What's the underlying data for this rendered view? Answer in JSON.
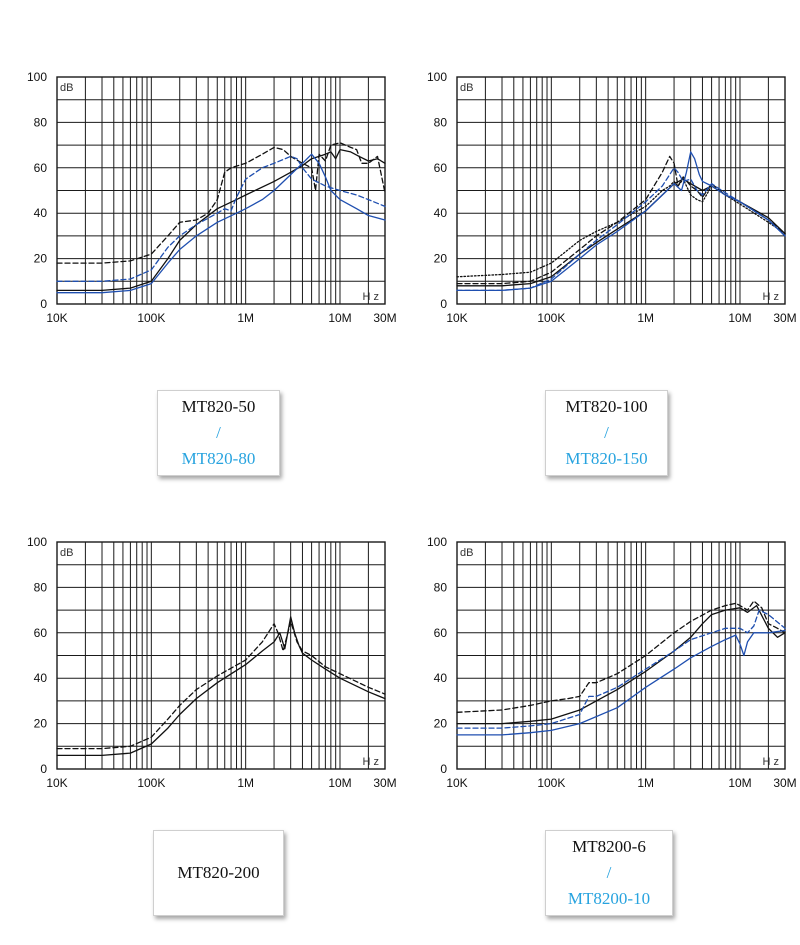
{
  "chart_data": [
    {
      "type": "line",
      "xscale": "log",
      "xlim": [
        10000,
        30000000
      ],
      "ylim": [
        0,
        100
      ],
      "x_ticks": [
        "10K",
        "100K",
        "1M",
        "10M",
        "30M"
      ],
      "y_ticks": [
        "0",
        "20",
        "40",
        "60",
        "80",
        "100"
      ],
      "ylabel": "dB",
      "xunit": "Hz",
      "legend": {
        "black": "MT820-50",
        "slash": "/",
        "blue": "MT820-80"
      },
      "series": [
        {
          "color": "#111111",
          "dash": "solid",
          "x": [
            10000,
            30000,
            60000,
            100000,
            150000,
            200000,
            300000,
            500000,
            800000,
            1000000,
            2000000,
            3000000,
            4000000,
            5000000,
            6000000,
            7000000,
            8000000,
            9000000,
            10000000,
            13000000,
            16000000,
            20000000,
            25000000,
            30000000
          ],
          "y": [
            6,
            6,
            7,
            10,
            20,
            28,
            35,
            42,
            46,
            48,
            54,
            58,
            61,
            64,
            65,
            66,
            67,
            64,
            68,
            67,
            65,
            63,
            64,
            62
          ]
        },
        {
          "color": "#111111",
          "dash": "dashed",
          "x": [
            10000,
            30000,
            60000,
            100000,
            150000,
            200000,
            300000,
            400000,
            500000,
            600000,
            700000,
            1000000,
            1500000,
            2000000,
            2500000,
            3000000,
            4000000,
            5000000,
            5500000,
            6000000,
            7000000,
            8000000,
            10000000,
            13000000,
            15000000,
            17000000,
            20000000,
            25000000,
            30000000
          ],
          "y": [
            18,
            18,
            19,
            22,
            30,
            36,
            37,
            40,
            46,
            58,
            60,
            62,
            66,
            69,
            68,
            65,
            62,
            60,
            50,
            66,
            63,
            70,
            71,
            69,
            68,
            62,
            62,
            65,
            49
          ]
        },
        {
          "color": "#1f4fb0",
          "dash": "dashed",
          "x": [
            10000,
            30000,
            60000,
            100000,
            150000,
            200000,
            300000,
            500000,
            600000,
            700000,
            800000,
            1000000,
            1500000,
            2000000,
            3000000,
            3500000,
            4000000,
            5000000,
            7000000,
            10000000,
            15000000,
            20000000,
            30000000
          ],
          "y": [
            10,
            10,
            11,
            15,
            25,
            30,
            35,
            40,
            42,
            41,
            47,
            55,
            60,
            62,
            65,
            64,
            60,
            55,
            52,
            50,
            48,
            46,
            43
          ]
        },
        {
          "color": "#1f4fb0",
          "dash": "solid",
          "x": [
            10000,
            30000,
            60000,
            100000,
            150000,
            200000,
            300000,
            500000,
            800000,
            1000000,
            1500000,
            2000000,
            3000000,
            4000000,
            5000000,
            6000000,
            7000000,
            8000000,
            10000000,
            15000000,
            20000000,
            30000000
          ],
          "y": [
            5,
            5,
            6,
            9,
            18,
            24,
            30,
            36,
            40,
            42,
            46,
            50,
            57,
            62,
            66,
            62,
            56,
            50,
            46,
            42,
            39,
            37
          ]
        }
      ]
    },
    {
      "type": "line",
      "xscale": "log",
      "xlim": [
        10000,
        30000000
      ],
      "ylim": [
        0,
        100
      ],
      "x_ticks": [
        "10K",
        "100K",
        "1M",
        "10M",
        "30M"
      ],
      "y_ticks": [
        "0",
        "20",
        "40",
        "60",
        "80",
        "100"
      ],
      "ylabel": "dB",
      "xunit": "Hz",
      "legend": {
        "black": "MT820-100",
        "slash": "/",
        "blue": "MT820-150"
      },
      "series": [
        {
          "color": "#111111",
          "dash": "dotted",
          "x": [
            10000,
            30000,
            60000,
            100000,
            200000,
            300000,
            500000,
            1000000,
            1500000,
            1800000,
            2000000,
            2200000,
            2500000,
            3000000,
            3500000,
            4000000,
            5000000,
            7000000,
            10000000,
            20000000,
            30000000
          ],
          "y": [
            12,
            13,
            14,
            18,
            28,
            32,
            36,
            43,
            50,
            52,
            54,
            52,
            55,
            48,
            46,
            45,
            52,
            48,
            44,
            36,
            31
          ]
        },
        {
          "color": "#111111",
          "dash": "dashed",
          "x": [
            10000,
            30000,
            60000,
            100000,
            200000,
            300000,
            500000,
            1000000,
            1500000,
            1800000,
            2000000,
            2200000,
            2500000,
            3000000,
            3500000,
            4000000,
            5000000,
            7000000,
            10000000,
            20000000,
            30000000
          ],
          "y": [
            9,
            9,
            10,
            14,
            24,
            30,
            36,
            46,
            58,
            65,
            62,
            52,
            56,
            52,
            50,
            47,
            53,
            48,
            45,
            37,
            31
          ]
        },
        {
          "color": "#111111",
          "dash": "solid",
          "x": [
            10000,
            30000,
            60000,
            100000,
            200000,
            300000,
            500000,
            1000000,
            1500000,
            2000000,
            2500000,
            3000000,
            4000000,
            5000000,
            7000000,
            10000000,
            20000000,
            30000000
          ],
          "y": [
            8,
            8,
            9,
            12,
            22,
            27,
            33,
            41,
            48,
            53,
            55,
            53,
            50,
            52,
            48,
            45,
            38,
            31
          ]
        },
        {
          "color": "#1f4fb0",
          "dash": "dashed",
          "x": [
            10000,
            30000,
            60000,
            100000,
            200000,
            300000,
            500000,
            1000000,
            1500000,
            2000000,
            2200000,
            2500000,
            3000000,
            3500000,
            4000000,
            5000000,
            7000000,
            10000000,
            20000000,
            30000000
          ],
          "y": [
            6,
            6,
            7,
            11,
            22,
            28,
            35,
            45,
            52,
            60,
            58,
            54,
            55,
            50,
            48,
            53,
            49,
            45,
            37,
            30
          ]
        },
        {
          "color": "#1f4fb0",
          "dash": "solid",
          "x": [
            10000,
            30000,
            60000,
            100000,
            200000,
            300000,
            500000,
            1000000,
            1500000,
            2000000,
            2400000,
            2700000,
            3000000,
            3300000,
            3700000,
            4000000,
            5000000,
            7000000,
            10000000,
            20000000,
            30000000
          ],
          "y": [
            6,
            6,
            7,
            10,
            20,
            26,
            32,
            41,
            48,
            53,
            50,
            58,
            67,
            64,
            57,
            54,
            52,
            48,
            45,
            37,
            30
          ]
        }
      ]
    },
    {
      "type": "line",
      "xscale": "log",
      "xlim": [
        10000,
        30000000
      ],
      "ylim": [
        0,
        100
      ],
      "x_ticks": [
        "10K",
        "100K",
        "1M",
        "10M",
        "30M"
      ],
      "y_ticks": [
        "0",
        "20",
        "40",
        "60",
        "80",
        "100"
      ],
      "ylabel": "dB",
      "xunit": "Hz",
      "legend": {
        "black": "MT820-200"
      },
      "series": [
        {
          "color": "#111111",
          "dash": "dashed",
          "x": [
            10000,
            30000,
            60000,
            100000,
            150000,
            200000,
            300000,
            500000,
            1000000,
            1500000,
            2000000,
            2200000,
            2500000,
            3000000,
            3500000,
            4000000,
            5000000,
            7000000,
            10000000,
            20000000,
            30000000
          ],
          "y": [
            9,
            9,
            10,
            14,
            22,
            28,
            35,
            41,
            48,
            56,
            64,
            60,
            52,
            65,
            56,
            52,
            50,
            45,
            42,
            36,
            33
          ]
        },
        {
          "color": "#111111",
          "dash": "solid",
          "x": [
            10000,
            30000,
            60000,
            100000,
            150000,
            200000,
            300000,
            500000,
            1000000,
            1500000,
            2000000,
            2300000,
            2600000,
            3000000,
            3300000,
            3700000,
            4000000,
            5000000,
            7000000,
            10000000,
            20000000,
            30000000
          ],
          "y": [
            6,
            6,
            7,
            11,
            18,
            24,
            31,
            38,
            46,
            52,
            56,
            60,
            53,
            67,
            60,
            54,
            51,
            48,
            44,
            40,
            34,
            31
          ]
        }
      ]
    },
    {
      "type": "line",
      "xscale": "log",
      "xlim": [
        10000,
        30000000
      ],
      "ylim": [
        0,
        100
      ],
      "x_ticks": [
        "10K",
        "100K",
        "1M",
        "10M",
        "30M"
      ],
      "y_ticks": [
        "0",
        "20",
        "40",
        "60",
        "80",
        "100"
      ],
      "ylabel": "dB",
      "xunit": "Hz",
      "legend": {
        "black": "MT8200-6",
        "slash": "/",
        "blue": "MT8200-10"
      },
      "series": [
        {
          "color": "#111111",
          "dash": "dashed",
          "x": [
            10000,
            30000,
            60000,
            100000,
            150000,
            200000,
            250000,
            300000,
            500000,
            1000000,
            2000000,
            3000000,
            5000000,
            7000000,
            9000000,
            10000000,
            12000000,
            14000000,
            17000000,
            20000000,
            25000000,
            30000000
          ],
          "y": [
            25,
            26,
            28,
            30,
            31,
            32,
            38,
            38,
            42,
            50,
            60,
            65,
            70,
            72,
            73,
            72,
            70,
            74,
            71,
            64,
            62,
            60
          ]
        },
        {
          "color": "#111111",
          "dash": "solid",
          "x": [
            10000,
            30000,
            60000,
            100000,
            200000,
            300000,
            500000,
            1000000,
            2000000,
            3000000,
            4000000,
            5000000,
            7000000,
            10000000,
            12000000,
            15000000,
            20000000,
            25000000,
            30000000
          ],
          "y": [
            20,
            20,
            21,
            22,
            26,
            30,
            35,
            43,
            52,
            58,
            64,
            68,
            70,
            71,
            69,
            72,
            62,
            58,
            60
          ]
        },
        {
          "color": "#1f4fb0",
          "dash": "dashed",
          "x": [
            10000,
            30000,
            60000,
            100000,
            200000,
            250000,
            300000,
            500000,
            1000000,
            2000000,
            3000000,
            5000000,
            7000000,
            10000000,
            12000000,
            14000000,
            16000000,
            20000000,
            30000000
          ],
          "y": [
            18,
            18,
            19,
            20,
            24,
            32,
            32,
            36,
            44,
            52,
            57,
            60,
            62,
            62,
            60,
            63,
            70,
            68,
            62
          ]
        },
        {
          "color": "#1f4fb0",
          "dash": "solid",
          "x": [
            10000,
            30000,
            60000,
            100000,
            200000,
            500000,
            1000000,
            2000000,
            3000000,
            5000000,
            7000000,
            9000000,
            10000000,
            11000000,
            12000000,
            14000000,
            20000000,
            30000000
          ],
          "y": [
            15,
            15,
            16,
            17,
            20,
            27,
            36,
            44,
            49,
            54,
            57,
            59,
            55,
            50,
            56,
            60,
            60,
            61
          ]
        }
      ]
    }
  ]
}
